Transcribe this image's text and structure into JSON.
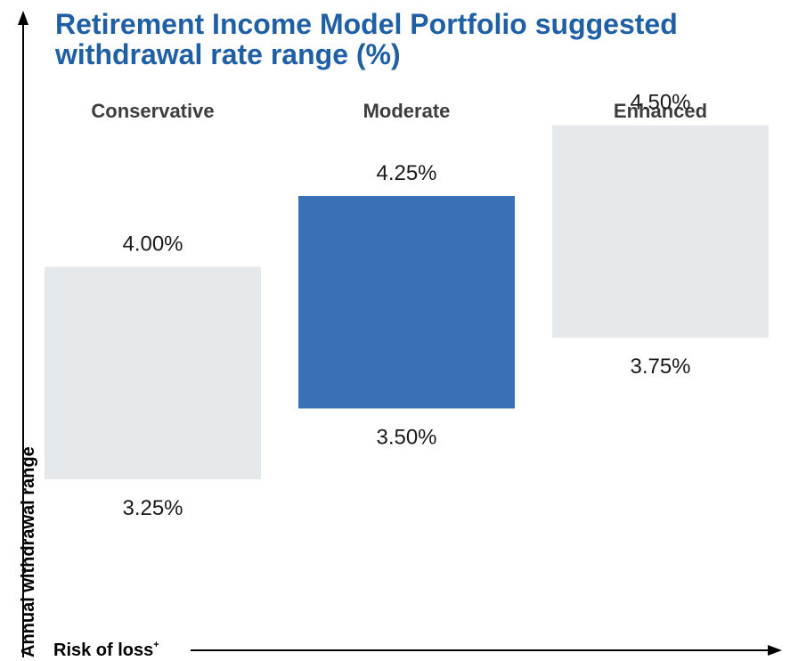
{
  "chart_data": {
    "type": "bar",
    "subtype": "floating-range",
    "title_lines": [
      "Retirement Income Model Portfolio suggested",
      "withdrawal rate range (%)"
    ],
    "categories": [
      "Conservative",
      "Moderate",
      "Enhanced"
    ],
    "series": [
      {
        "low": 3.25,
        "high": 4.0,
        "low_label": "3.25%",
        "high_label": "4.00%"
      },
      {
        "low": 3.5,
        "high": 4.25,
        "low_label": "3.50%",
        "high_label": "4.25%"
      },
      {
        "low": 3.75,
        "high": 4.5,
        "low_label": "3.75%",
        "high_label": "4.50%"
      }
    ],
    "ylabel": "Annual withdrawal range",
    "xlabel": "Risk of loss",
    "xlabel_marker": "+",
    "grid": false,
    "legend": "none",
    "colors": {
      "highlight": "#3a70b5",
      "muted": "#e5e9eb",
      "title": "#1f5fa6"
    },
    "highlighted_category": "Moderate"
  }
}
